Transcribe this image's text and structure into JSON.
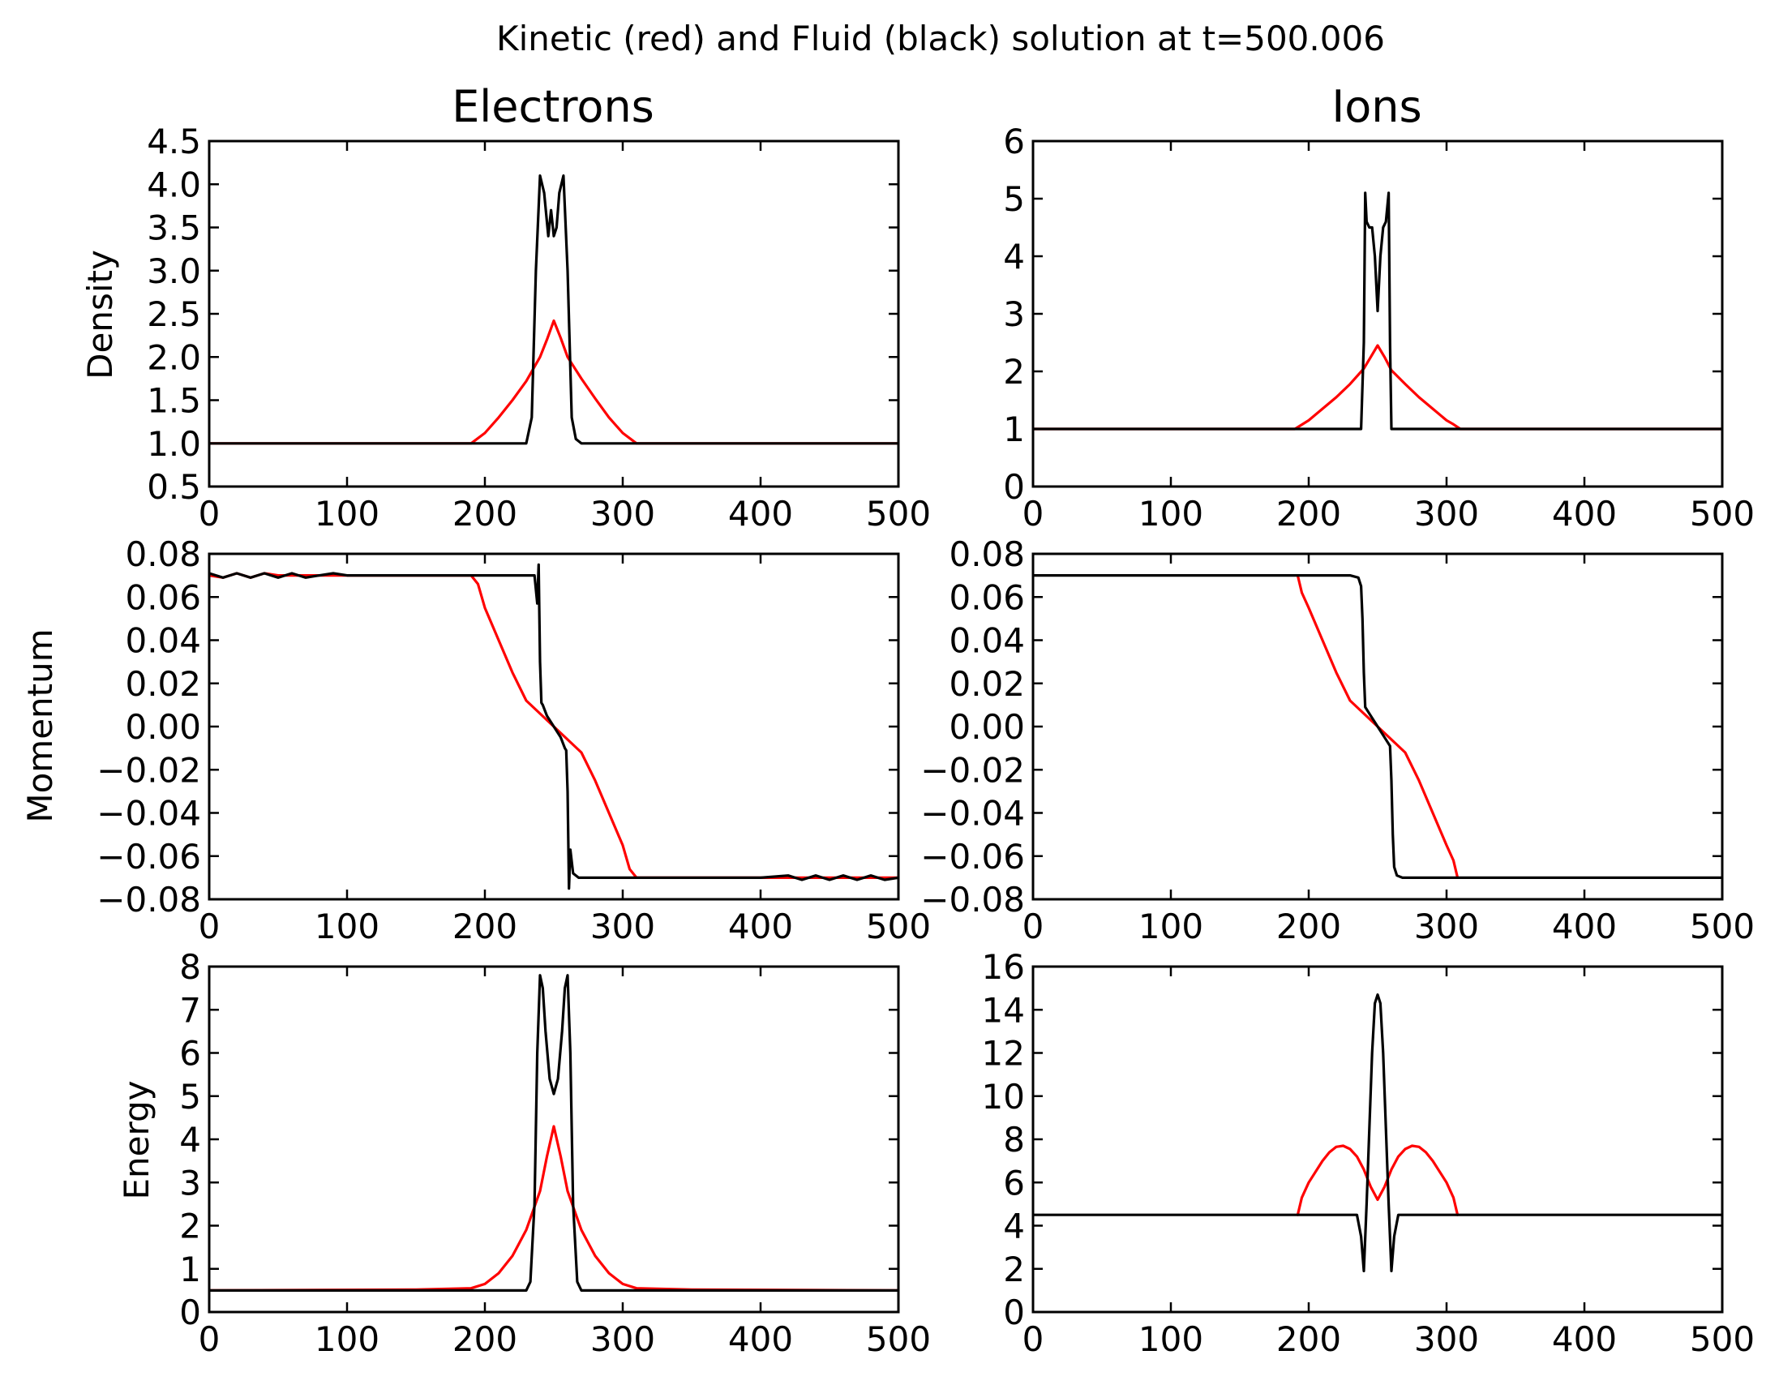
{
  "chart_data": {
    "type": "line",
    "title": "Kinetic (red) and Fluid (black) solution at t=500.006",
    "columns": [
      "Electrons",
      "Ions"
    ],
    "row_labels": [
      "Density",
      "Momentum",
      "Energy"
    ],
    "colors": {
      "kinetic": "#ff0000",
      "fluid": "#000000"
    },
    "grid": false,
    "panels": [
      {
        "id": "electrons-density",
        "row": 0,
        "col": 0,
        "xlim": [
          0,
          500
        ],
        "ylim": [
          0.5,
          4.5
        ],
        "xticks": [
          "0",
          "100",
          "200",
          "300",
          "400",
          "500"
        ],
        "yticks": [
          "0.5",
          "1.0",
          "1.5",
          "2.0",
          "2.5",
          "3.0",
          "3.5",
          "4.0",
          "4.5"
        ],
        "series": [
          {
            "color": "#ff0000",
            "x": [
              0,
              150,
              190,
              200,
              210,
              220,
              230,
              240,
              245,
              250,
              255,
              260,
              270,
              280,
              290,
              300,
              310,
              350,
              500
            ],
            "y": [
              1.0,
              1.0,
              1.0,
              1.12,
              1.3,
              1.5,
              1.72,
              2.0,
              2.2,
              2.42,
              2.22,
              2.0,
              1.75,
              1.52,
              1.3,
              1.12,
              1.0,
              1.0,
              1.0
            ]
          },
          {
            "color": "#000000",
            "x": [
              0,
              230,
              234,
              237,
              240,
              243,
              246,
              248,
              250,
              252,
              254,
              257,
              260,
              263,
              266,
              270,
              500
            ],
            "y": [
              1.0,
              1.0,
              1.3,
              3.0,
              4.1,
              3.9,
              3.4,
              3.7,
              3.4,
              3.5,
              3.9,
              4.1,
              3.0,
              1.3,
              1.05,
              1.0,
              1.0
            ]
          }
        ]
      },
      {
        "id": "ions-density",
        "row": 0,
        "col": 1,
        "xlim": [
          0,
          500
        ],
        "ylim": [
          0,
          6
        ],
        "xticks": [
          "0",
          "100",
          "200",
          "300",
          "400",
          "500"
        ],
        "yticks": [
          "0",
          "1",
          "2",
          "3",
          "4",
          "5",
          "6"
        ],
        "series": [
          {
            "color": "#ff0000",
            "x": [
              0,
              150,
              190,
              200,
              210,
              220,
              230,
              240,
              245,
              250,
              255,
              260,
              270,
              280,
              290,
              300,
              305,
              310,
              350,
              500
            ],
            "y": [
              1.0,
              1.0,
              1.0,
              1.15,
              1.35,
              1.55,
              1.78,
              2.05,
              2.25,
              2.45,
              2.25,
              2.02,
              1.78,
              1.55,
              1.35,
              1.15,
              1.08,
              1.0,
              1.0,
              1.0
            ]
          },
          {
            "color": "#000000",
            "x": [
              0,
              238,
              240,
              241,
              242,
              244,
              246,
              248,
              250,
              252,
              254,
              256,
              258,
              259,
              260,
              262,
              500
            ],
            "y": [
              1.0,
              1.0,
              2.5,
              5.1,
              4.6,
              4.5,
              4.5,
              4.0,
              3.05,
              4.0,
              4.5,
              4.6,
              5.1,
              2.5,
              1.0,
              1.0,
              1.0
            ]
          }
        ]
      },
      {
        "id": "electrons-momentum",
        "row": 1,
        "col": 0,
        "xlim": [
          0,
          500
        ],
        "ylim": [
          -0.08,
          0.08
        ],
        "xticks": [
          "0",
          "100",
          "200",
          "300",
          "400",
          "500"
        ],
        "yticks": [
          "0.08",
          "0.06",
          "0.04",
          "0.02",
          "0.00",
          "−0.02",
          "−0.04",
          "−0.06",
          "−0.08"
        ],
        "series": [
          {
            "color": "#ff0000",
            "x": [
              0,
              10,
              20,
              30,
              40,
              50,
              60,
              70,
              80,
              100,
              150,
              190,
              195,
              200,
              210,
              220,
              230,
              240,
              250,
              260,
              270,
              280,
              290,
              300,
              305,
              310,
              350,
              400,
              450,
              500
            ],
            "y": [
              0.07,
              0.069,
              0.071,
              0.069,
              0.071,
              0.07,
              0.07,
              0.07,
              0.07,
              0.07,
              0.07,
              0.07,
              0.066,
              0.055,
              0.04,
              0.025,
              0.012,
              0.006,
              0.0,
              -0.006,
              -0.012,
              -0.025,
              -0.04,
              -0.055,
              -0.066,
              -0.07,
              -0.07,
              -0.07,
              -0.07,
              -0.07
            ]
          },
          {
            "color": "#000000",
            "x": [
              0,
              10,
              20,
              30,
              40,
              50,
              60,
              70,
              80,
              90,
              100,
              150,
              200,
              236,
              238,
              239,
              240,
              241,
              242,
              245,
              250,
              255,
              258,
              259,
              260,
              261,
              262,
              264,
              268,
              300,
              400,
              420,
              430,
              440,
              450,
              460,
              470,
              480,
              490,
              500
            ],
            "y": [
              0.071,
              0.069,
              0.071,
              0.069,
              0.071,
              0.069,
              0.071,
              0.069,
              0.07,
              0.071,
              0.07,
              0.07,
              0.07,
              0.07,
              0.057,
              0.075,
              0.03,
              0.011,
              0.01,
              0.005,
              0.0,
              -0.005,
              -0.01,
              -0.011,
              -0.03,
              -0.075,
              -0.057,
              -0.068,
              -0.07,
              -0.07,
              -0.07,
              -0.069,
              -0.071,
              -0.069,
              -0.071,
              -0.069,
              -0.071,
              -0.069,
              -0.071,
              -0.07
            ]
          }
        ]
      },
      {
        "id": "ions-momentum",
        "row": 1,
        "col": 1,
        "xlim": [
          0,
          500
        ],
        "ylim": [
          -0.08,
          0.08
        ],
        "xticks": [
          "0",
          "100",
          "200",
          "300",
          "400",
          "500"
        ],
        "yticks": [
          "0.08",
          "0.06",
          "0.04",
          "0.02",
          "0.00",
          "−0.02",
          "−0.04",
          "−0.06",
          "−0.08"
        ],
        "series": [
          {
            "color": "#ff0000",
            "x": [
              192,
              195,
              200,
              210,
              220,
              230,
              240,
              250,
              260,
              270,
              280,
              290,
              300,
              305,
              308
            ],
            "y": [
              0.07,
              0.062,
              0.055,
              0.04,
              0.025,
              0.012,
              0.006,
              0.0,
              -0.006,
              -0.012,
              -0.025,
              -0.04,
              -0.055,
              -0.062,
              -0.07
            ]
          },
          {
            "color": "#000000",
            "x": [
              0,
              230,
              236,
              238,
              239,
              240,
              241,
              245,
              250,
              255,
              259,
              260,
              261,
              262,
              264,
              268,
              500
            ],
            "y": [
              0.07,
              0.07,
              0.069,
              0.065,
              0.05,
              0.025,
              0.009,
              0.005,
              0.0,
              -0.005,
              -0.009,
              -0.025,
              -0.05,
              -0.065,
              -0.069,
              -0.07,
              -0.07
            ]
          }
        ]
      },
      {
        "id": "electrons-energy",
        "row": 2,
        "col": 0,
        "xlim": [
          0,
          500
        ],
        "ylim": [
          0,
          8
        ],
        "xticks": [
          "0",
          "100",
          "200",
          "300",
          "400",
          "500"
        ],
        "yticks": [
          "0",
          "1",
          "2",
          "3",
          "4",
          "5",
          "6",
          "7",
          "8"
        ],
        "series": [
          {
            "color": "#ff0000",
            "x": [
              0,
              150,
              190,
              200,
              210,
              220,
              230,
              240,
              245,
              250,
              255,
              260,
              270,
              280,
              290,
              300,
              310,
              350,
              500
            ],
            "y": [
              0.5,
              0.52,
              0.55,
              0.65,
              0.9,
              1.3,
              1.9,
              2.8,
              3.6,
              4.3,
              3.6,
              2.8,
              1.9,
              1.3,
              0.9,
              0.65,
              0.55,
              0.52,
              0.5
            ]
          },
          {
            "color": "#000000",
            "x": [
              0,
              230,
              233,
              236,
              238,
              240,
              242,
              244,
              247,
              250,
              253,
              256,
              258,
              260,
              262,
              264,
              267,
              270,
              500
            ],
            "y": [
              0.5,
              0.5,
              0.7,
              2.5,
              6.0,
              7.8,
              7.5,
              6.5,
              5.4,
              5.05,
              5.4,
              6.5,
              7.5,
              7.8,
              6.0,
              2.5,
              0.7,
              0.5,
              0.5
            ]
          }
        ]
      },
      {
        "id": "ions-energy",
        "row": 2,
        "col": 1,
        "xlim": [
          0,
          500
        ],
        "ylim": [
          0,
          16
        ],
        "xticks": [
          "0",
          "100",
          "200",
          "300",
          "400",
          "500"
        ],
        "yticks": [
          "0",
          "2",
          "4",
          "6",
          "8",
          "10",
          "12",
          "14",
          "16"
        ],
        "series": [
          {
            "color": "#ff0000",
            "x": [
              192,
              195,
              200,
              210,
              215,
              220,
              225,
              230,
              235,
              240,
              245,
              250,
              255,
              260,
              265,
              270,
              275,
              280,
              285,
              290,
              300,
              305,
              308
            ],
            "y": [
              4.5,
              5.3,
              6.0,
              7.0,
              7.4,
              7.65,
              7.7,
              7.55,
              7.2,
              6.6,
              5.8,
              5.2,
              5.8,
              6.6,
              7.2,
              7.55,
              7.7,
              7.65,
              7.4,
              7.0,
              6.0,
              5.3,
              4.5
            ]
          },
          {
            "color": "#000000",
            "x": [
              0,
              235,
              238,
              240,
              242,
              244,
              246,
              248,
              250,
              252,
              254,
              256,
              258,
              260,
              262,
              265,
              500
            ],
            "y": [
              4.5,
              4.5,
              3.5,
              1.9,
              5.0,
              8.5,
              12.0,
              14.3,
              14.7,
              14.3,
              12.0,
              8.5,
              5.0,
              1.9,
              3.5,
              4.5,
              4.5
            ]
          }
        ]
      }
    ]
  }
}
